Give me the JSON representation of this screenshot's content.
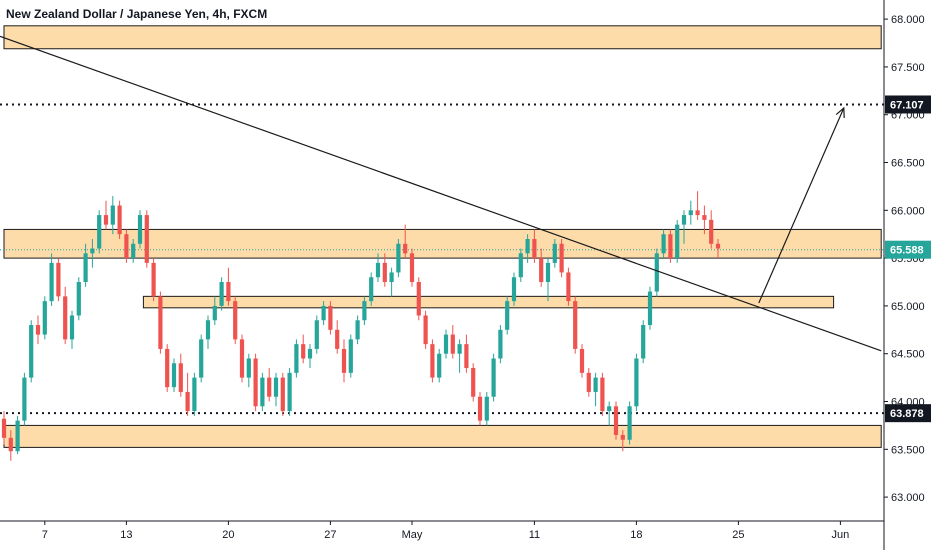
{
  "header": {
    "title": "New Zealand Dollar / Japanese Yen, 4h, FXCM"
  },
  "colors": {
    "up": "#26a69a",
    "down": "#ef5350",
    "zone_fill": "#fddcaa",
    "zone_stroke": "#1a1a1a",
    "line": "#1a1a1a",
    "price_line": "#26a69a",
    "badge": "#131722",
    "badge_price": "#26a69a",
    "axis_text": "#131722"
  },
  "chart_data": {
    "type": "candlestick",
    "title": "New Zealand Dollar / Japanese Yen, 4h, FXCM",
    "ylim": [
      62.75,
      68.2
    ],
    "y_ticks": [
      {
        "value": 68.0,
        "label": "68.000"
      },
      {
        "value": 67.5,
        "label": "67.500"
      },
      {
        "value": 67.0,
        "label": "67.000"
      },
      {
        "value": 66.5,
        "label": "66.500"
      },
      {
        "value": 66.0,
        "label": "66.000"
      },
      {
        "value": 65.5,
        "label": "65.500"
      },
      {
        "value": 65.0,
        "label": "65.000"
      },
      {
        "value": 64.5,
        "label": "64.500"
      },
      {
        "value": 64.0,
        "label": "64.000"
      },
      {
        "value": 63.5,
        "label": "63.500"
      },
      {
        "value": 63.0,
        "label": "63.000"
      }
    ],
    "x_ticks": [
      {
        "index": 6,
        "label": "7"
      },
      {
        "index": 18,
        "label": "13"
      },
      {
        "index": 33,
        "label": "20"
      },
      {
        "index": 48,
        "label": "27"
      },
      {
        "index": 60,
        "label": "May"
      },
      {
        "index": 78,
        "label": "11"
      },
      {
        "index": 93,
        "label": "18"
      },
      {
        "index": 108,
        "label": "25"
      },
      {
        "index": 123,
        "label": "Jun"
      }
    ],
    "levels": [
      {
        "value": 67.107,
        "label": "67.107",
        "style": "dotted"
      },
      {
        "value": 63.878,
        "label": "63.878",
        "style": "dotted"
      },
      {
        "value": 65.588,
        "label": "65.588",
        "style": "last-price"
      }
    ],
    "zones": [
      {
        "x_start": 0,
        "x_end": 129,
        "top": 67.93,
        "bottom": 67.69
      },
      {
        "x_start": 0,
        "x_end": 129,
        "top": 65.8,
        "bottom": 65.5
      },
      {
        "x_start": 20.5,
        "x_end": 122,
        "top": 65.1,
        "bottom": 64.98
      },
      {
        "x_start": 0,
        "x_end": 129,
        "top": 63.75,
        "bottom": 63.52
      }
    ],
    "trendline": {
      "x1": 0,
      "y1": 67.82,
      "x2": 129,
      "y2": 64.53
    },
    "arrow": {
      "x1": 111,
      "y1": 65.03,
      "x2": 123.5,
      "y2": 67.07
    },
    "candles": [
      [
        63.82,
        63.9,
        63.55,
        63.62
      ],
      [
        63.62,
        63.7,
        63.38,
        63.48
      ],
      [
        63.48,
        63.85,
        63.45,
        63.8
      ],
      [
        63.8,
        64.3,
        63.75,
        64.25
      ],
      [
        64.25,
        64.85,
        64.2,
        64.8
      ],
      [
        64.8,
        64.9,
        64.6,
        64.7
      ],
      [
        64.7,
        65.1,
        64.65,
        65.05
      ],
      [
        65.05,
        65.55,
        65.0,
        65.45
      ],
      [
        65.45,
        65.5,
        65.05,
        65.1
      ],
      [
        65.1,
        65.2,
        64.6,
        64.65
      ],
      [
        64.65,
        64.95,
        64.55,
        64.9
      ],
      [
        64.9,
        65.3,
        64.85,
        65.25
      ],
      [
        65.25,
        65.65,
        65.2,
        65.55
      ],
      [
        65.55,
        65.7,
        65.4,
        65.6
      ],
      [
        65.6,
        66.0,
        65.55,
        65.95
      ],
      [
        65.95,
        66.1,
        65.8,
        65.85
      ],
      [
        65.85,
        66.15,
        65.75,
        66.05
      ],
      [
        66.05,
        66.1,
        65.7,
        65.75
      ],
      [
        65.75,
        65.8,
        65.45,
        65.5
      ],
      [
        65.5,
        65.7,
        65.45,
        65.65
      ],
      [
        65.65,
        66.0,
        65.6,
        65.95
      ],
      [
        65.95,
        66.0,
        65.4,
        65.45
      ],
      [
        65.45,
        65.5,
        65.05,
        65.1
      ],
      [
        65.1,
        65.15,
        64.5,
        64.55
      ],
      [
        64.55,
        64.6,
        64.1,
        64.15
      ],
      [
        64.15,
        64.45,
        64.1,
        64.4
      ],
      [
        64.4,
        64.5,
        64.05,
        64.1
      ],
      [
        64.1,
        64.3,
        63.85,
        63.9
      ],
      [
        63.9,
        64.3,
        63.85,
        64.25
      ],
      [
        64.25,
        64.7,
        64.2,
        64.65
      ],
      [
        64.65,
        64.9,
        64.55,
        64.85
      ],
      [
        64.85,
        65.1,
        64.8,
        65.0
      ],
      [
        65.0,
        65.3,
        64.95,
        65.25
      ],
      [
        65.25,
        65.4,
        65.0,
        65.05
      ],
      [
        65.05,
        65.1,
        64.6,
        64.65
      ],
      [
        64.65,
        64.7,
        64.2,
        64.25
      ],
      [
        64.25,
        64.5,
        64.15,
        64.45
      ],
      [
        64.45,
        64.5,
        63.9,
        63.95
      ],
      [
        63.95,
        64.3,
        63.9,
        64.25
      ],
      [
        64.25,
        64.35,
        64.0,
        64.05
      ],
      [
        64.05,
        64.3,
        63.95,
        64.25
      ],
      [
        64.25,
        64.3,
        63.85,
        63.9
      ],
      [
        63.9,
        64.35,
        63.85,
        64.3
      ],
      [
        64.3,
        64.65,
        64.25,
        64.6
      ],
      [
        64.6,
        64.7,
        64.4,
        64.45
      ],
      [
        64.45,
        64.6,
        64.35,
        64.55
      ],
      [
        64.55,
        64.9,
        64.5,
        64.85
      ],
      [
        64.85,
        65.05,
        64.8,
        65.0
      ],
      [
        65.0,
        65.05,
        64.7,
        64.75
      ],
      [
        64.75,
        64.85,
        64.5,
        64.55
      ],
      [
        64.55,
        64.65,
        64.2,
        64.3
      ],
      [
        64.3,
        64.7,
        64.25,
        64.65
      ],
      [
        64.65,
        64.9,
        64.6,
        64.85
      ],
      [
        64.85,
        65.1,
        64.8,
        65.05
      ],
      [
        65.05,
        65.35,
        65.0,
        65.3
      ],
      [
        65.3,
        65.55,
        65.25,
        65.45
      ],
      [
        65.45,
        65.55,
        65.2,
        65.25
      ],
      [
        65.25,
        65.4,
        65.1,
        65.35
      ],
      [
        65.35,
        65.7,
        65.3,
        65.65
      ],
      [
        65.65,
        65.85,
        65.5,
        65.55
      ],
      [
        65.55,
        65.6,
        65.2,
        65.25
      ],
      [
        65.25,
        65.3,
        64.85,
        64.9
      ],
      [
        64.9,
        64.95,
        64.55,
        64.6
      ],
      [
        64.6,
        64.65,
        64.2,
        64.25
      ],
      [
        64.25,
        64.55,
        64.2,
        64.5
      ],
      [
        64.5,
        64.75,
        64.45,
        64.7
      ],
      [
        64.7,
        64.8,
        64.45,
        64.5
      ],
      [
        64.5,
        64.65,
        64.3,
        64.6
      ],
      [
        64.6,
        64.7,
        64.3,
        64.35
      ],
      [
        64.35,
        64.4,
        64.0,
        64.05
      ],
      [
        64.05,
        64.1,
        63.75,
        63.8
      ],
      [
        63.8,
        64.1,
        63.75,
        64.05
      ],
      [
        64.05,
        64.5,
        64.0,
        64.45
      ],
      [
        64.45,
        64.8,
        64.4,
        64.75
      ],
      [
        64.75,
        65.1,
        64.7,
        65.05
      ],
      [
        65.05,
        65.35,
        65.0,
        65.3
      ],
      [
        65.3,
        65.6,
        65.25,
        65.55
      ],
      [
        65.55,
        65.75,
        65.45,
        65.7
      ],
      [
        65.7,
        65.8,
        65.45,
        65.5
      ],
      [
        65.5,
        65.6,
        65.2,
        65.25
      ],
      [
        65.25,
        65.5,
        65.05,
        65.45
      ],
      [
        65.45,
        65.7,
        65.4,
        65.65
      ],
      [
        65.65,
        65.7,
        65.3,
        65.35
      ],
      [
        65.35,
        65.4,
        65.0,
        65.05
      ],
      [
        65.05,
        65.1,
        64.5,
        64.55
      ],
      [
        64.55,
        64.6,
        64.25,
        64.3
      ],
      [
        64.3,
        64.35,
        64.05,
        64.1
      ],
      [
        64.1,
        64.3,
        63.95,
        64.25
      ],
      [
        64.25,
        64.3,
        63.85,
        63.9
      ],
      [
        63.9,
        64.0,
        63.75,
        63.95
      ],
      [
        63.95,
        64.0,
        63.6,
        63.65
      ],
      [
        63.65,
        63.7,
        63.48,
        63.6
      ],
      [
        63.6,
        64.0,
        63.55,
        63.95
      ],
      [
        63.95,
        64.5,
        63.9,
        64.45
      ],
      [
        64.45,
        64.85,
        64.4,
        64.8
      ],
      [
        64.8,
        65.2,
        64.75,
        65.15
      ],
      [
        65.15,
        65.6,
        65.1,
        65.55
      ],
      [
        65.55,
        65.8,
        65.5,
        65.75
      ],
      [
        65.75,
        65.8,
        65.45,
        65.5
      ],
      [
        65.5,
        65.9,
        65.45,
        65.85
      ],
      [
        65.85,
        66.0,
        65.65,
        65.95
      ],
      [
        65.95,
        66.1,
        65.85,
        66.0
      ],
      [
        66.0,
        66.2,
        65.9,
        65.95
      ],
      [
        65.95,
        66.05,
        65.75,
        65.9
      ],
      [
        65.9,
        66.0,
        65.6,
        65.65
      ],
      [
        65.65,
        65.7,
        65.5,
        65.6
      ]
    ]
  },
  "labels": {
    "last_price": "65.588",
    "level_high": "67.107",
    "level_low": "63.878"
  }
}
